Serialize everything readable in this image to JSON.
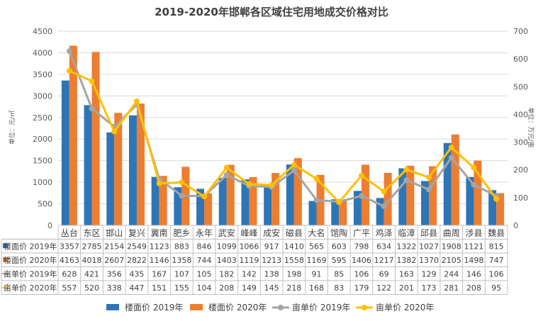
{
  "chart_data": {
    "type": "bar",
    "title": "2019-2020年邯郸各区域住宅用地成交价格对比",
    "ylabel_left": "单位：元/㎡",
    "ylabel_right": "单位：万元/亩",
    "ylim_left": [
      0,
      4500
    ],
    "ylim_right": [
      0,
      700
    ],
    "yticks_left": [
      "0",
      "500",
      "1000",
      "1500",
      "2000",
      "2500",
      "3000",
      "3500",
      "4000",
      "4500"
    ],
    "yticks_right": [
      "0",
      "100",
      "200",
      "300",
      "400",
      "500",
      "600",
      "700"
    ],
    "grid": true,
    "legend_position": "bottom",
    "categories": [
      "丛台",
      "东区",
      "邯山",
      "复兴",
      "冀南",
      "肥乡",
      "永年",
      "武安",
      "峰峰",
      "成安",
      "磁县",
      "大名",
      "馆陶",
      "广平",
      "鸡泽",
      "临漳",
      "邱县",
      "曲周",
      "涉县",
      "魏县"
    ],
    "series": [
      {
        "name": "楼面价 2019年",
        "table_label": "楼面价 2019年",
        "kind": "bar",
        "axis": "left",
        "color": "#2E75B6",
        "values": [
          3357,
          2785,
          2154,
          2549,
          1123,
          883,
          846,
          1099,
          1066,
          917,
          1410,
          565,
          603,
          798,
          634,
          1322,
          1027,
          1908,
          1121,
          815
        ]
      },
      {
        "name": "楼面价 2020年",
        "table_label": "楼面价 2020年",
        "kind": "bar",
        "axis": "left",
        "color": "#ED7D31",
        "values": [
          4163,
          4018,
          2607,
          2822,
          1146,
          1358,
          744,
          1403,
          1119,
          1213,
          1558,
          1169,
          595,
          1406,
          1217,
          1382,
          1370,
          2105,
          1498,
          747
        ]
      },
      {
        "name": "亩单价 2019年",
        "table_label": "亩单价 2019年",
        "kind": "line",
        "axis": "right",
        "color": "#A5A5A5",
        "values": [
          628,
          421,
          356,
          435,
          167,
          107,
          105,
          182,
          142,
          138,
          198,
          91,
          85,
          106,
          69,
          163,
          129,
          244,
          146,
          106
        ]
      },
      {
        "name": "亩单价 2020年",
        "table_label": "亩单价 2020年",
        "kind": "line",
        "axis": "right",
        "color": "#FFC000",
        "values": [
          557,
          520,
          338,
          447,
          151,
          155,
          104,
          208,
          149,
          145,
          218,
          168,
          83,
          179,
          122,
          201,
          173,
          281,
          208,
          95
        ]
      }
    ]
  }
}
